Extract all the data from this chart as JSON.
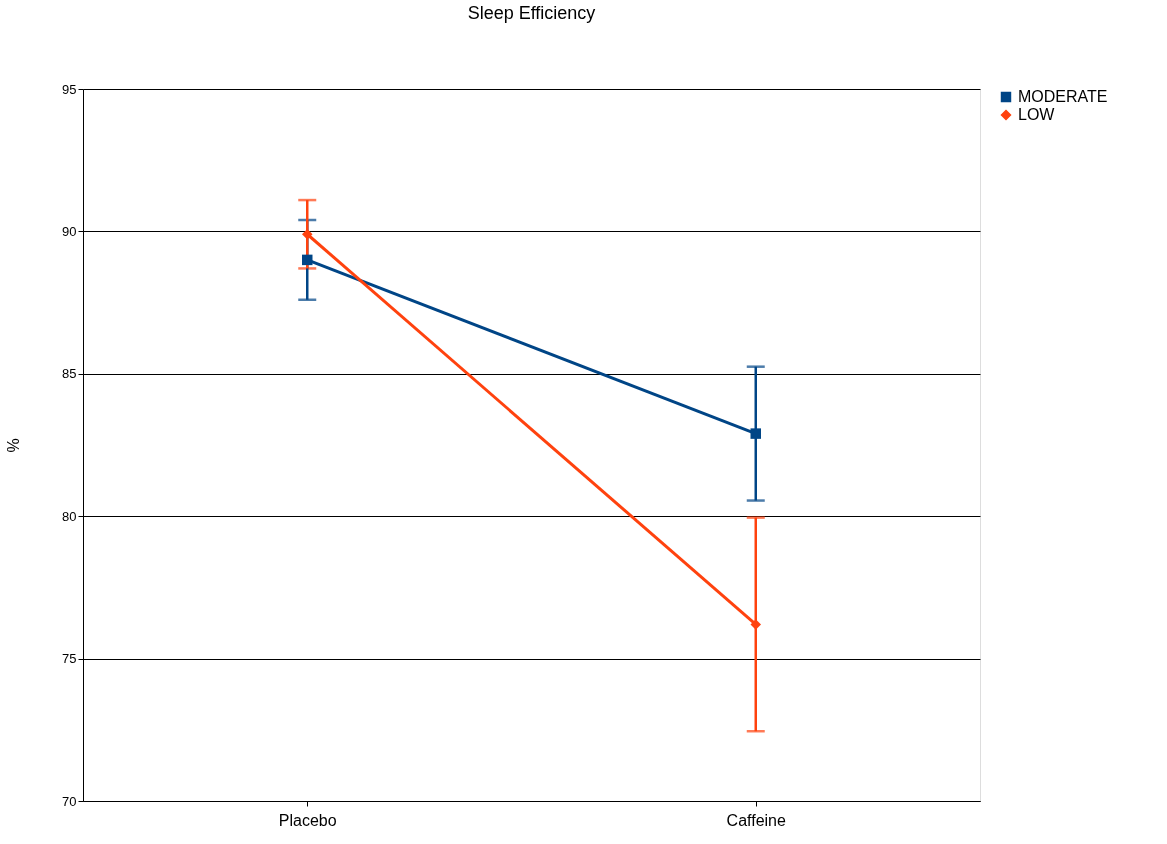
{
  "chart_data": {
    "type": "line",
    "title": "Sleep Efficiency",
    "ylabel": "%",
    "categories": [
      "Placebo",
      "Caffeine"
    ],
    "series": [
      {
        "name": "MODERATE",
        "color": "#004586",
        "marker": "square",
        "values": [
          89.0,
          82.9
        ],
        "errors": [
          1.4,
          2.35
        ]
      },
      {
        "name": "LOW",
        "color": "#ff420e",
        "marker": "diamond",
        "values": [
          89.9,
          76.2
        ],
        "errors": [
          1.2,
          3.75
        ]
      }
    ],
    "ylim": [
      70,
      95
    ],
    "yticks": [
      70,
      75,
      80,
      85,
      90,
      95
    ],
    "grid": "y",
    "legend": "right",
    "line_style": "solid"
  }
}
